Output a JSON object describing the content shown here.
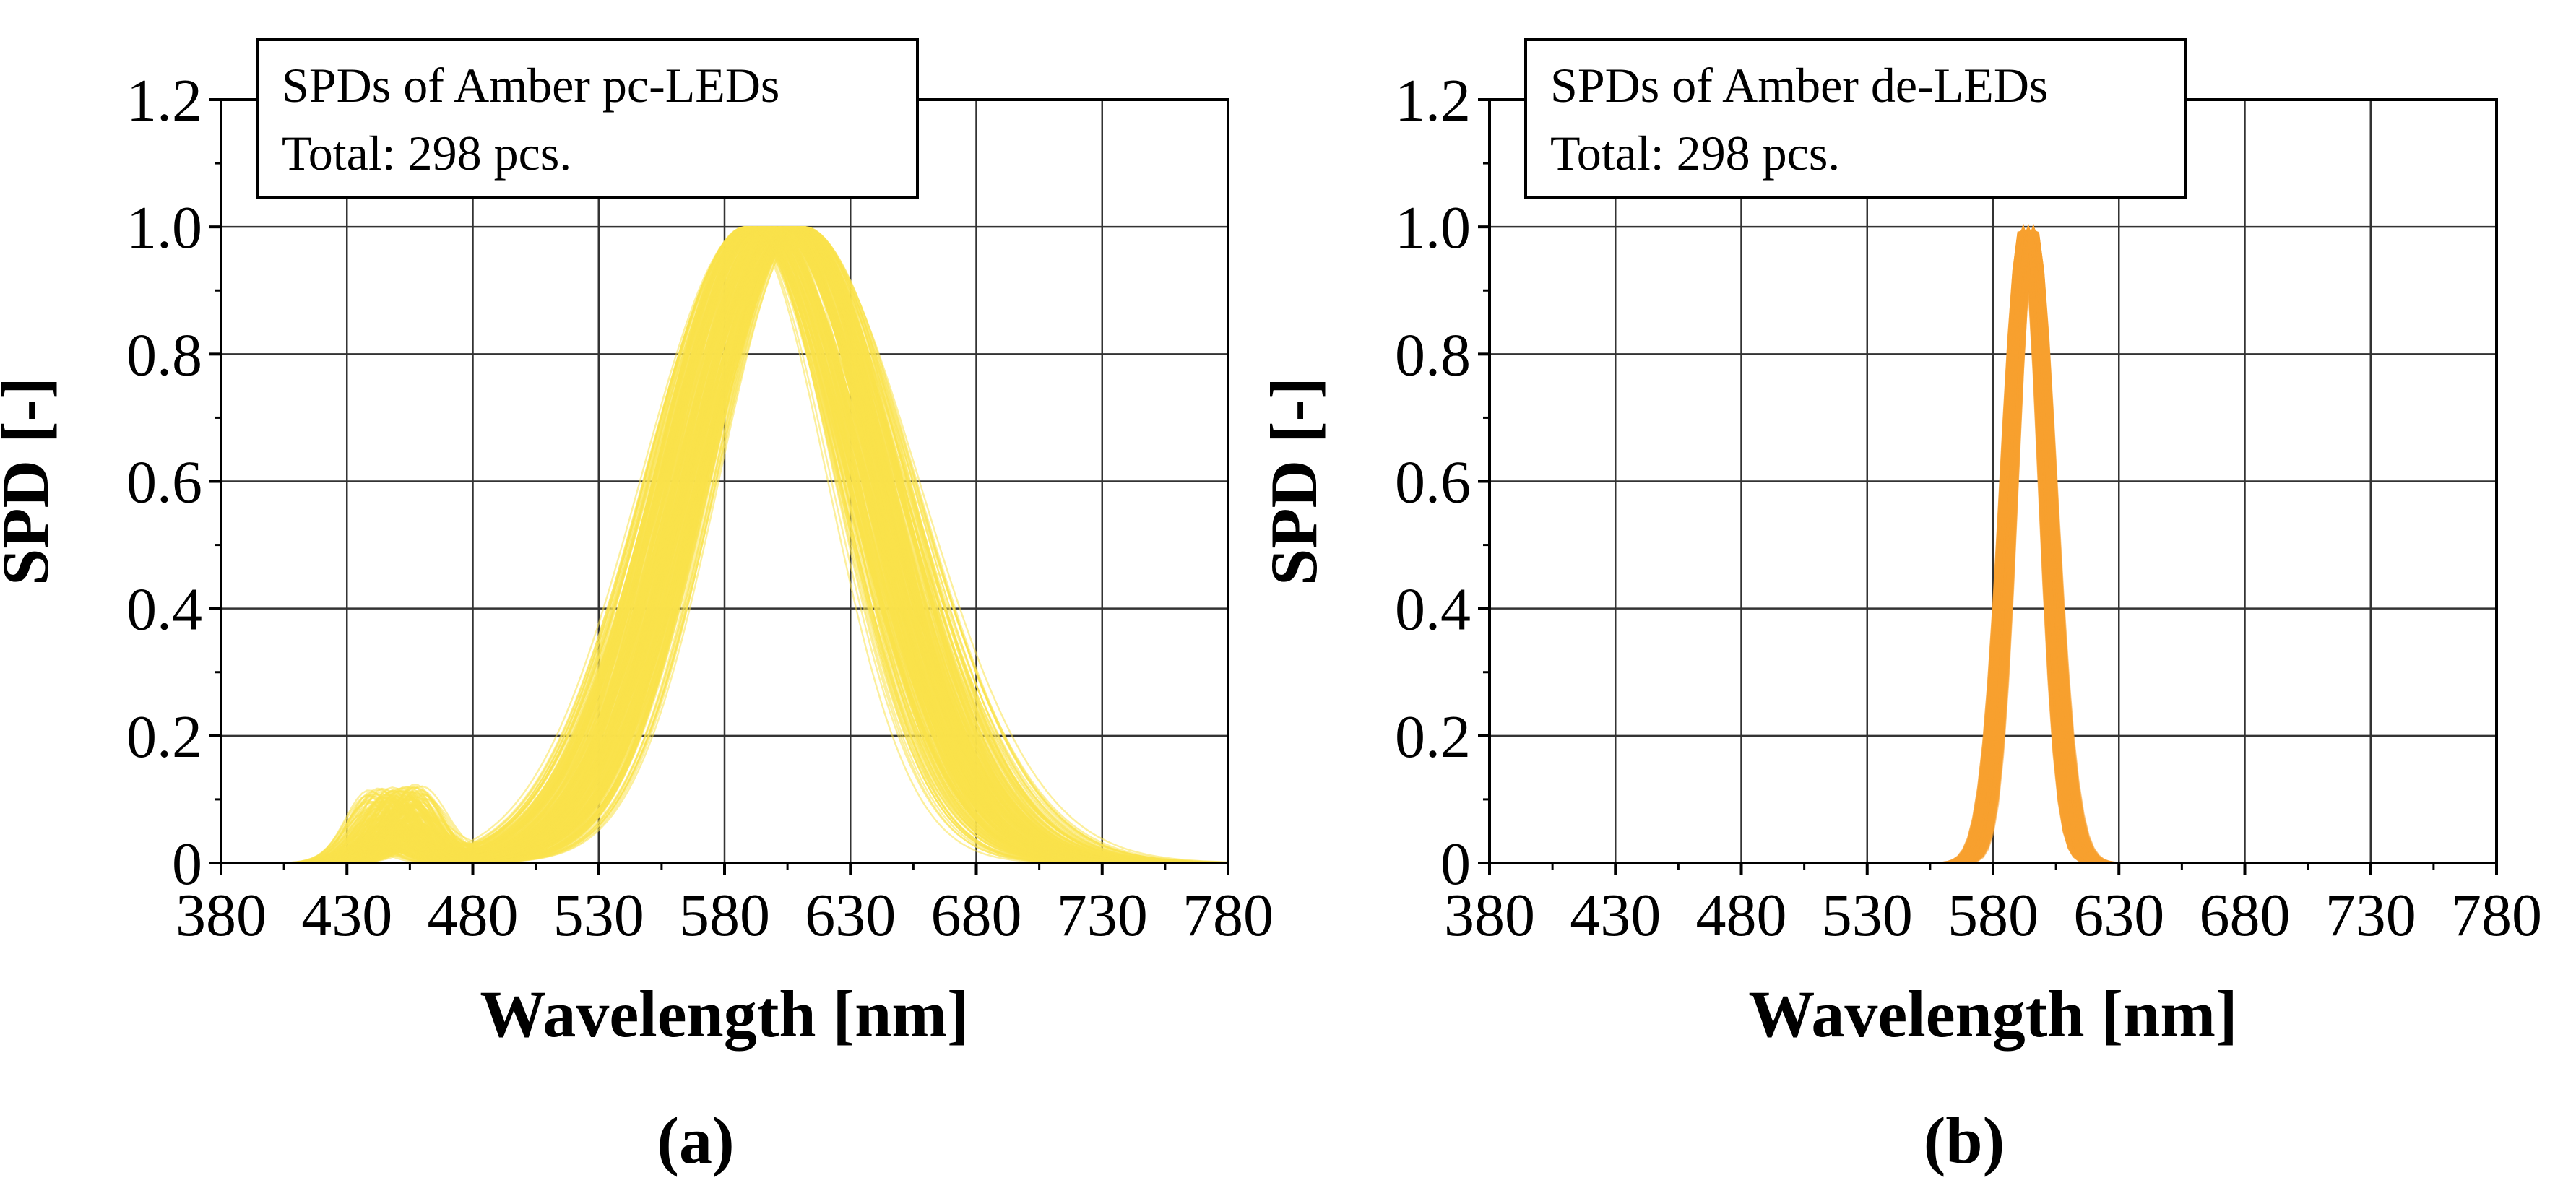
{
  "chart_data": [
    {
      "type": "line",
      "panel_label": "(a)",
      "legend_title": "SPDs of Amber pc-LEDs",
      "legend_total": "Total: 298 pcs.",
      "xlabel": "Wavelength [nm]",
      "ylabel": "SPD [-]",
      "xlim": [
        380,
        780
      ],
      "ylim": [
        0,
        1.2
      ],
      "xticks": [
        380,
        430,
        480,
        530,
        580,
        630,
        680,
        730,
        780
      ],
      "yticks": [
        0,
        0.2,
        0.4,
        0.6,
        0.8,
        1.0,
        1.2
      ],
      "ytick_labels": [
        "0",
        "0.2",
        "0.4",
        "0.6",
        "0.8",
        "1.0",
        "1.2"
      ],
      "grid": true,
      "series_count": 298,
      "series_color": "#F9E24A",
      "envelope": {
        "peak_nm_range": [
          588,
          612
        ],
        "fwhm_nm_range": [
          78,
          100
        ],
        "blue_peak_nm_range": [
          438,
          462
        ],
        "blue_amplitude_range": [
          0.02,
          0.12
        ]
      }
    },
    {
      "type": "line",
      "panel_label": "(b)",
      "legend_title": "SPDs of Amber de-LEDs",
      "legend_total": "Total: 298 pcs.",
      "xlabel": "Wavelength [nm]",
      "ylabel": "SPD [-]",
      "xlim": [
        380,
        780
      ],
      "ylim": [
        0,
        1.2
      ],
      "xticks": [
        380,
        430,
        480,
        530,
        580,
        630,
        680,
        730,
        780
      ],
      "yticks": [
        0,
        0.2,
        0.4,
        0.6,
        0.8,
        1.0,
        1.2
      ],
      "ytick_labels": [
        "0",
        "0.2",
        "0.4",
        "0.6",
        "0.8",
        "1.0",
        "1.2"
      ],
      "grid": true,
      "series_count": 298,
      "series_color": "#F7A030",
      "envelope": {
        "peak_nm_range": [
          591,
          597
        ],
        "fwhm_nm_range": [
          16,
          20
        ]
      }
    }
  ]
}
